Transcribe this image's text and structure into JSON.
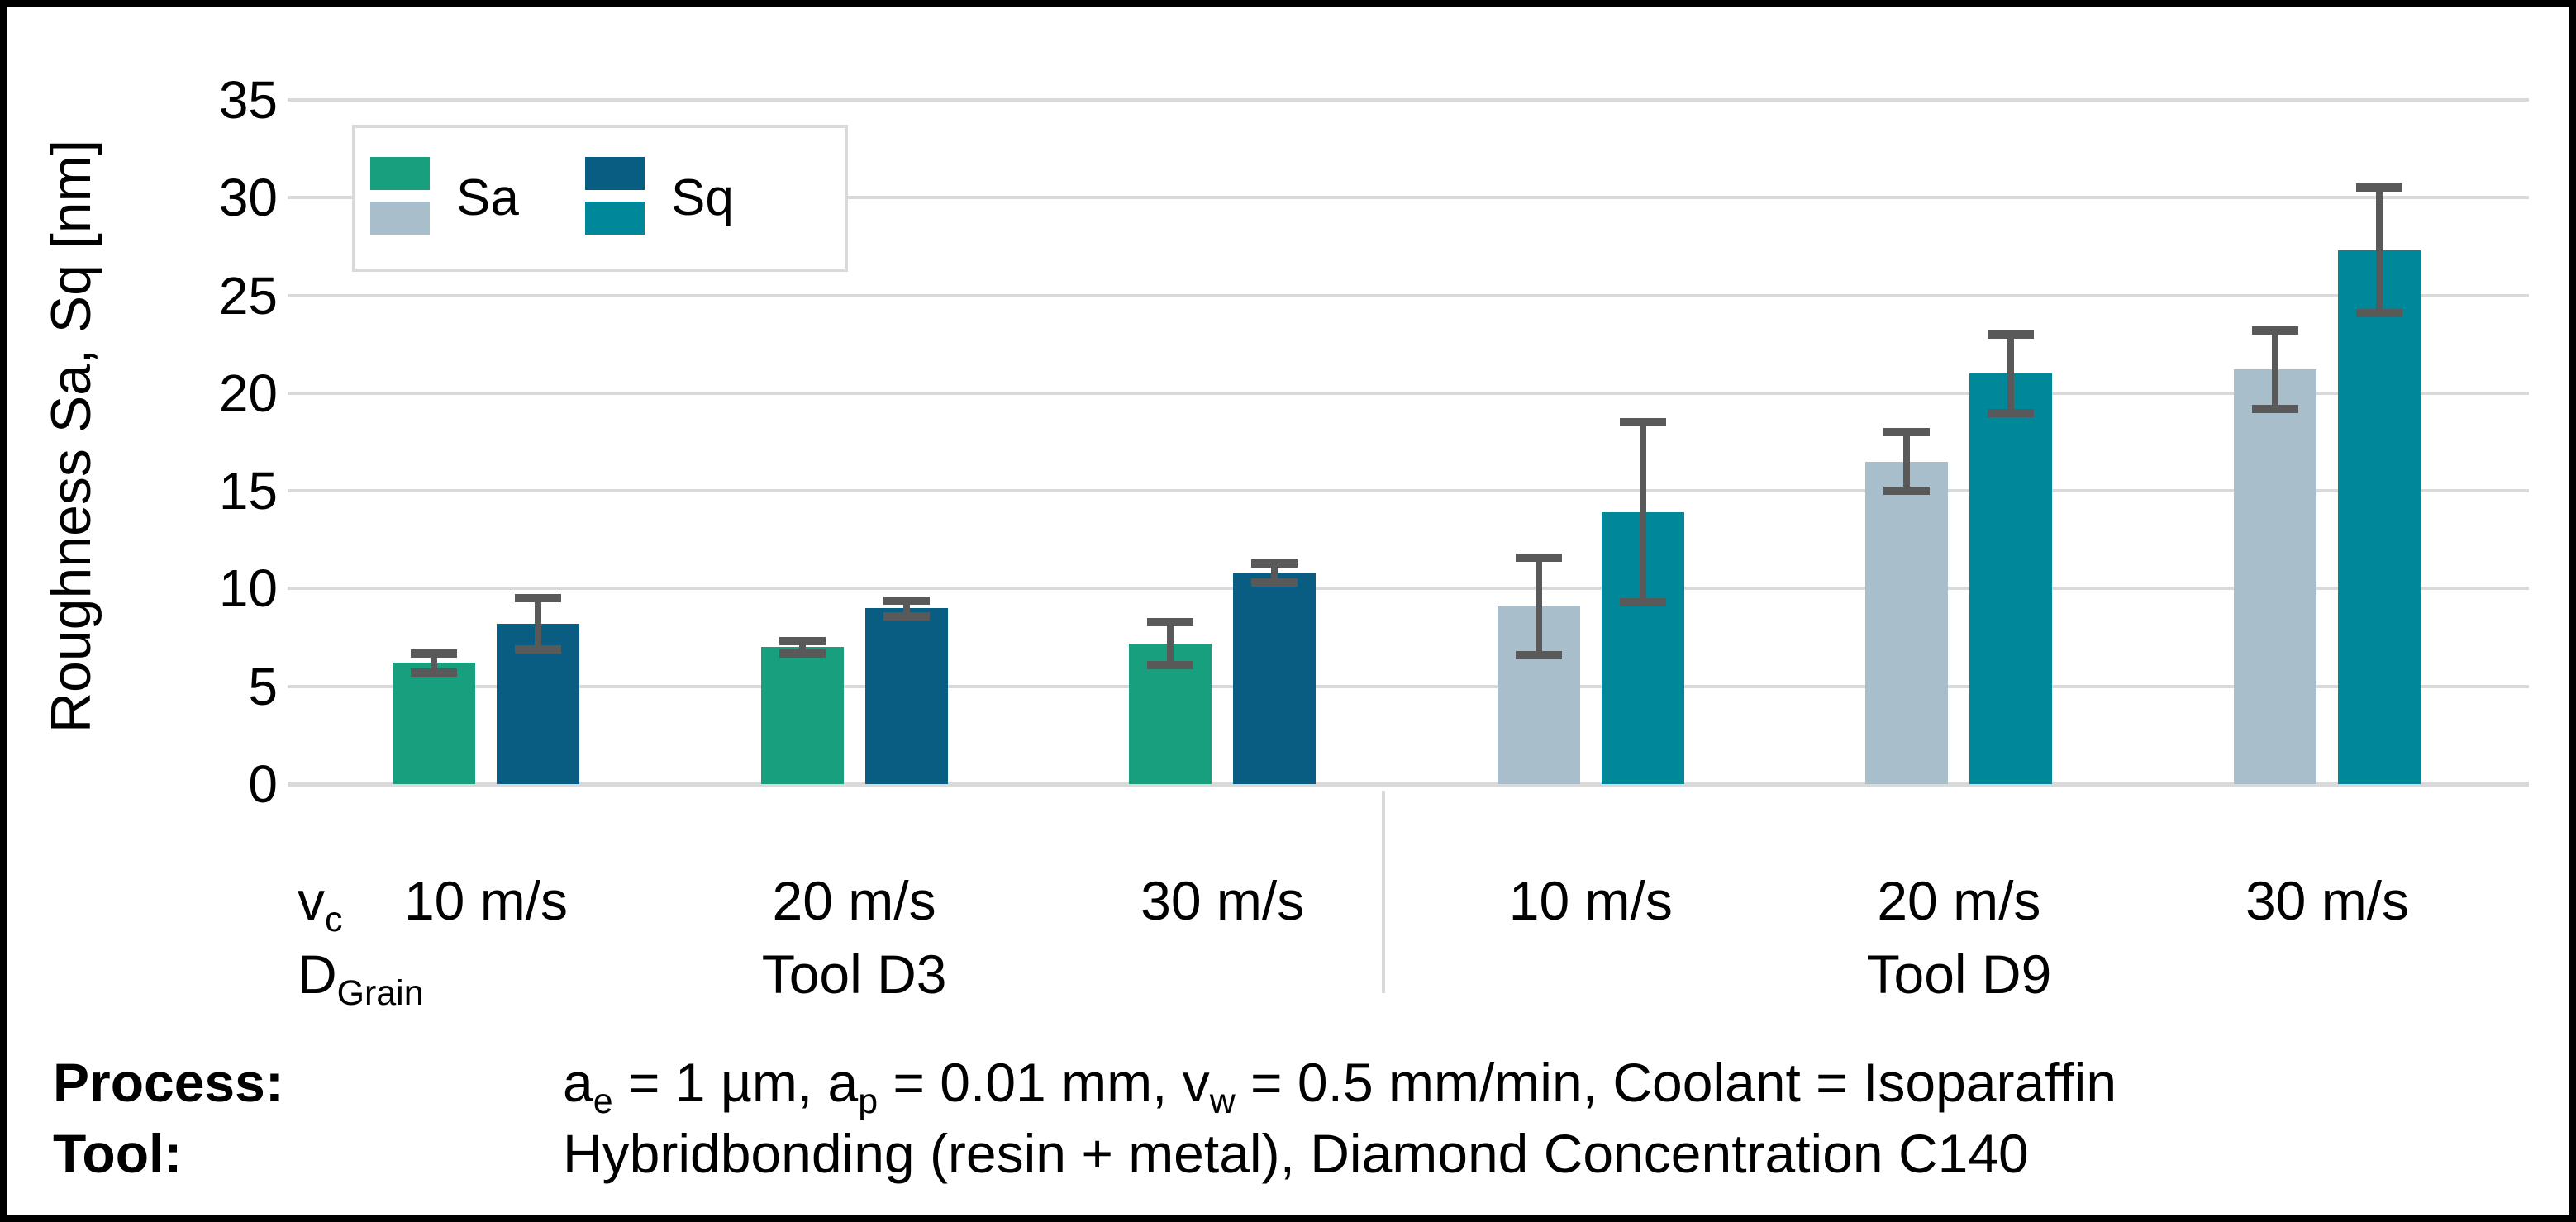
{
  "chart_data": {
    "type": "bar",
    "title": "",
    "ylabel": "Roughness Sa, Sq [nm]",
    "xlabel": "",
    "ylim": [
      0,
      35
    ],
    "yticks": [
      35,
      30,
      25,
      20,
      15,
      10,
      5,
      0
    ],
    "grid": true,
    "legend_position": "top-left",
    "axis_row_labels": {
      "speed": "v_{c}",
      "grain": "D_{Grain}"
    },
    "groups": [
      {
        "label": "Tool D3",
        "categories": [
          "10 m/s",
          "20 m/s",
          "30 m/s"
        ],
        "series": [
          {
            "name": "Sa",
            "color": "#18A07E",
            "values": [
              6.2,
              7.0,
              7.2
            ],
            "errors": [
              0.5,
              0.3,
              1.1
            ]
          },
          {
            "name": "Sq",
            "color": "#0A5D82",
            "values": [
              8.2,
              9.0,
              10.8
            ],
            "errors": [
              1.3,
              0.4,
              0.5
            ]
          }
        ]
      },
      {
        "label": "Tool D9",
        "categories": [
          "10 m/s",
          "20 m/s",
          "30 m/s"
        ],
        "series": [
          {
            "name": "Sa",
            "color": "#A8BECB",
            "values": [
              9.1,
              16.5,
              21.2
            ],
            "errors": [
              2.5,
              1.5,
              2.0
            ]
          },
          {
            "name": "Sq",
            "color": "#00889A",
            "values": [
              13.9,
              21.0,
              27.3
            ],
            "errors": [
              4.6,
              2.0,
              3.2
            ]
          }
        ]
      }
    ],
    "legend": [
      {
        "label": "Sa",
        "colors": [
          "#18A07E",
          "#A8BECB"
        ]
      },
      {
        "label": "Sq",
        "colors": [
          "#0A5D82",
          "#00889A"
        ]
      }
    ],
    "colors": {
      "grid": "#D9D9D9",
      "error_bar": "#595959",
      "text": "#000000",
      "frame": "#000000"
    }
  },
  "annotations": {
    "process_label": "Process:",
    "process_text": "a_{e} = 1 µm, a_{p} = 0.01 mm, v_{w} = 0.5 mm/min, Coolant = Isoparaffin",
    "tool_label": "Tool:",
    "tool_text": "Hybridbonding (resin + metal), Diamond Concentration C140"
  }
}
